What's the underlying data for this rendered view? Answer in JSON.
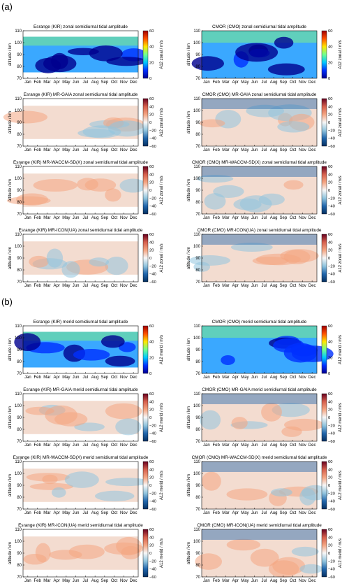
{
  "panels": [
    {
      "label": "(a)"
    },
    {
      "label": "(b)"
    }
  ],
  "months": [
    "Jan",
    "Feb",
    "Mar",
    "Apr",
    "May",
    "Jun",
    "Jul",
    "Aug",
    "Sep",
    "Oct",
    "Nov",
    "Dec"
  ],
  "colorscale": {
    "amplitude": {
      "ticks": [
        "60",
        "40",
        "20",
        "0"
      ],
      "range": [
        0,
        60
      ],
      "colors": [
        "#00008f",
        "#0030ff",
        "#00c8ff",
        "#70ff90",
        "#ffe600",
        "#ff5000",
        "#a00000"
      ]
    },
    "difference": {
      "ticks": [
        "60",
        "40",
        "20",
        "0",
        "−20",
        "−40",
        "−60"
      ],
      "range": [
        -60,
        60
      ],
      "colors": [
        "#053061",
        "#2166ac",
        "#92c5de",
        "#f7f7f7",
        "#f4a582",
        "#d6604d",
        "#67001f"
      ]
    }
  },
  "chart_data": [
    {
      "type": "heatmap",
      "kind": "amplitude",
      "title": "Esrange (KIR) zonal semidiurnal tidal amplitude",
      "ylabel": "altitude / km",
      "cbar_label": "A12 zonal / m/s",
      "ylim": [
        70,
        110
      ],
      "yticks": [
        "110",
        "100",
        "90",
        "80",
        "70"
      ],
      "data_extent_km": [
        75,
        105
      ],
      "grid": false
    },
    {
      "type": "heatmap",
      "kind": "amplitude",
      "title": "CMOR (CMO) zonal semidiurnal tidal amplitude",
      "ylabel": "altitude / km",
      "cbar_label": "A12 zonal / m/s",
      "ylim": [
        70,
        110
      ],
      "yticks": [
        "110",
        "100",
        "90",
        "80",
        "70"
      ],
      "data_extent_km": [
        70,
        110
      ],
      "grid": false
    },
    {
      "type": "heatmap",
      "kind": "difference",
      "title": "Esrange (KIR) MR-GAIA zonal semidiurnal tidal amplitude",
      "ylabel": "altitude / km",
      "cbar_label": "A12 zonal / m/s",
      "ylim": [
        70,
        110
      ],
      "yticks": [
        "110",
        "100",
        "90",
        "80",
        "70"
      ],
      "data_extent_km": [
        76,
        104
      ],
      "grid": false
    },
    {
      "type": "heatmap",
      "kind": "difference",
      "title": "CMOR (CMO) MR-GAIA zonal semidiurnal tidal amplitude",
      "ylabel": "altitude / km",
      "cbar_label": "A12 zonal / m/s",
      "ylim": [
        70,
        110
      ],
      "yticks": [
        "110",
        "100",
        "90",
        "80",
        "70"
      ],
      "data_extent_km": [
        70,
        110
      ],
      "grid": false
    },
    {
      "type": "heatmap",
      "kind": "difference",
      "title": "Esrange (KIR) MR-WACCM-SD(X) zonal semidiurnal tidal amplitude",
      "ylabel": "altitude / km",
      "cbar_label": "A12 zonal / m/s",
      "ylim": [
        70,
        110
      ],
      "yticks": [
        "110",
        "100",
        "90",
        "80",
        "70"
      ],
      "data_extent_km": [
        76,
        104
      ],
      "grid": false
    },
    {
      "type": "heatmap",
      "kind": "difference",
      "title": "CMOR (CMO) MR-WACCM-SD(X) zonal semidiurnal tidal amplitude",
      "ylabel": "altitude / km",
      "cbar_label": "A12 zonal / m/s",
      "ylim": [
        70,
        110
      ],
      "yticks": [
        "110",
        "100",
        "90",
        "80",
        "70"
      ],
      "data_extent_km": [
        70,
        110
      ],
      "grid": false
    },
    {
      "type": "heatmap",
      "kind": "difference",
      "title": "Esrange (KIR) MR-ICON(UA) zonal semidiurnal tidal amplitude",
      "ylabel": "altitude / km",
      "cbar_label": "A12 zonal / m/s",
      "ylim": [
        70,
        110
      ],
      "yticks": [
        "110",
        "100",
        "90",
        "80",
        "70"
      ],
      "data_extent_km": [
        76,
        104
      ],
      "grid": false
    },
    {
      "type": "heatmap",
      "kind": "difference",
      "title": "CMOR (CMO) MR-ICON(UA) zonal semidiurnal tidal amplitude",
      "ylabel": "altitude / km",
      "cbar_label": "A12 zonal / m/s",
      "ylim": [
        70,
        110
      ],
      "yticks": [
        "110",
        "100",
        "90",
        "80",
        "70"
      ],
      "data_extent_km": [
        70,
        110
      ],
      "grid": false
    },
    {
      "type": "heatmap",
      "kind": "amplitude",
      "title": "Esrange (KIR) merid semidiurnal tidal amplitude",
      "ylabel": "altitude / km",
      "cbar_label": "A12 merid / m/s",
      "ylim": [
        70,
        110
      ],
      "yticks": [
        "110",
        "100",
        "90",
        "80",
        "70"
      ],
      "data_extent_km": [
        75,
        105
      ],
      "grid": false
    },
    {
      "type": "heatmap",
      "kind": "amplitude",
      "title": "CMOR (CMO) merid semidiurnal tidal amplitude",
      "ylabel": "altitude / km",
      "cbar_label": "A12 merid / m/s",
      "ylim": [
        70,
        110
      ],
      "yticks": [
        "110",
        "100",
        "90",
        "80",
        "70"
      ],
      "data_extent_km": [
        70,
        110
      ],
      "grid": false
    },
    {
      "type": "heatmap",
      "kind": "difference",
      "title": "Esrange (KIR) MR-GAIA merid semidiurnal tidal amplitude",
      "ylabel": "altitude / km",
      "cbar_label": "A12 merid / m/s",
      "ylim": [
        70,
        110
      ],
      "yticks": [
        "110",
        "100",
        "90",
        "80",
        "70"
      ],
      "data_extent_km": [
        76,
        104
      ],
      "grid": false
    },
    {
      "type": "heatmap",
      "kind": "difference",
      "title": "CMOR (CMO) MR-GAIA merid semidiurnal tidal amplitude",
      "ylabel": "altitude / km",
      "cbar_label": "A12 merid / m/s",
      "ylim": [
        70,
        110
      ],
      "yticks": [
        "110",
        "100",
        "90",
        "80",
        "70"
      ],
      "data_extent_km": [
        70,
        110
      ],
      "grid": false
    },
    {
      "type": "heatmap",
      "kind": "difference",
      "title": "Esrange (KIR) MR-WACCM-SD(X) merid semidiurnal tidal amplitude",
      "ylabel": "altitude / km",
      "cbar_label": "A12 merid / m/s",
      "ylim": [
        70,
        110
      ],
      "yticks": [
        "110",
        "100",
        "90",
        "80",
        "70"
      ],
      "data_extent_km": [
        76,
        104
      ],
      "grid": false
    },
    {
      "type": "heatmap",
      "kind": "difference",
      "title": "CMOR (CMO) MR-WACCM-SD(X) merid semidiurnal tidal amplitude",
      "ylabel": "altitude / km",
      "cbar_label": "A12 merid / m/s",
      "ylim": [
        70,
        110
      ],
      "yticks": [
        "110",
        "100",
        "90",
        "80",
        "70"
      ],
      "data_extent_km": [
        70,
        110
      ],
      "grid": false
    },
    {
      "type": "heatmap",
      "kind": "difference",
      "title": "Esrange (KIR) MR-ICON(UA) merid semidiurnal tidal amplitude",
      "ylabel": "altitude / km",
      "cbar_label": "A12 merid / m/s",
      "ylim": [
        70,
        110
      ],
      "yticks": [
        "110",
        "100",
        "90",
        "80",
        "70"
      ],
      "data_extent_km": [
        76,
        104
      ],
      "grid": false
    },
    {
      "type": "heatmap",
      "kind": "difference",
      "title": "CMOR (CMO) MR-ICON(UA) merid semidiurnal tidal amplitude",
      "ylabel": "altitude / km",
      "cbar_label": "A12 merid / m/s",
      "ylim": [
        70,
        110
      ],
      "yticks": [
        "110",
        "100",
        "90",
        "80",
        "70"
      ],
      "data_extent_km": [
        70,
        110
      ],
      "grid": false
    }
  ]
}
